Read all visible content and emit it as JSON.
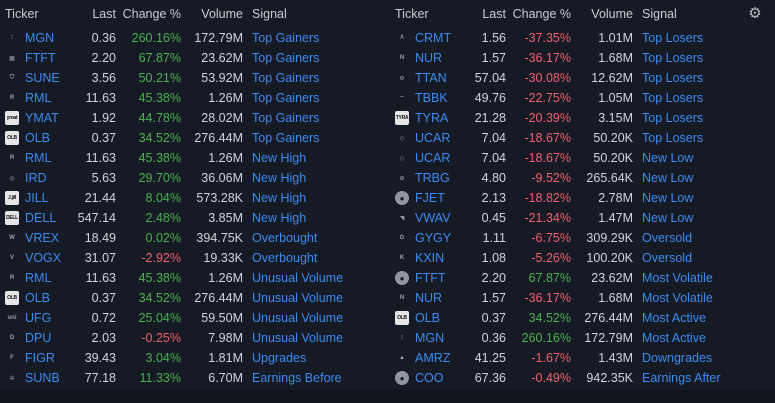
{
  "headers": {
    "ticker": "Ticker",
    "last": "Last",
    "change": "Change %",
    "volume": "Volume",
    "signal": "Signal"
  },
  "left": [
    {
      "logo": "rocket-logo",
      "glyph": "⫶",
      "ticker": "MGN",
      "last": "0.36",
      "change": "260.16%",
      "dir": "pos",
      "volume": "172.79M",
      "signal": "Top Gainers"
    },
    {
      "logo": "ftft-logo",
      "glyph": "▦",
      "ticker": "FTFT",
      "last": "2.20",
      "change": "67.87%",
      "dir": "pos",
      "volume": "23.62M",
      "signal": "Top Gainers"
    },
    {
      "logo": "sune-logo",
      "glyph": "⛉",
      "ticker": "SUNE",
      "last": "3.56",
      "change": "50.21%",
      "dir": "pos",
      "volume": "53.92M",
      "signal": "Top Gainers"
    },
    {
      "logo": "rml-logo",
      "glyph": "R",
      "ticker": "RML",
      "last": "11.63",
      "change": "45.38%",
      "dir": "pos",
      "volume": "1.26M",
      "signal": "Top Gainers"
    },
    {
      "logo": "ymat-logo",
      "glyph": "ymat",
      "ticker": "YMAT",
      "last": "1.92",
      "change": "44.78%",
      "dir": "pos",
      "volume": "28.02M",
      "signal": "Top Gainers"
    },
    {
      "logo": "olb-logo",
      "glyph": "OLB",
      "ticker": "OLB",
      "last": "0.37",
      "change": "34.52%",
      "dir": "pos",
      "volume": "276.44M",
      "signal": "Top Gainers"
    },
    {
      "logo": "rml-logo",
      "glyph": "R",
      "ticker": "RML",
      "last": "11.63",
      "change": "45.38%",
      "dir": "pos",
      "volume": "1.26M",
      "signal": "New High"
    },
    {
      "logo": "ird-logo",
      "glyph": "◎",
      "ticker": "IRD",
      "last": "5.63",
      "change": "29.70%",
      "dir": "pos",
      "volume": "36.06M",
      "signal": "New High"
    },
    {
      "logo": "jill-logo",
      "glyph": "J.jill",
      "ticker": "JILL",
      "last": "21.44",
      "change": "8.04%",
      "dir": "pos",
      "volume": "573.28K",
      "signal": "New High"
    },
    {
      "logo": "dell-logo",
      "glyph": "DELL",
      "ticker": "DELL",
      "last": "547.14",
      "change": "2.48%",
      "dir": "pos",
      "volume": "3.85M",
      "signal": "New High"
    },
    {
      "logo": "vrex-logo",
      "glyph": "W",
      "ticker": "VREX",
      "last": "18.49",
      "change": "0.02%",
      "dir": "pos",
      "volume": "394.75K",
      "signal": "Overbought"
    },
    {
      "logo": "vogx-logo",
      "glyph": "V",
      "ticker": "VOGX",
      "last": "31.07",
      "change": "-2.92%",
      "dir": "neg",
      "volume": "19.33K",
      "signal": "Overbought"
    },
    {
      "logo": "rml-logo",
      "glyph": "R",
      "ticker": "RML",
      "last": "11.63",
      "change": "45.38%",
      "dir": "pos",
      "volume": "1.26M",
      "signal": "Unusual Volume"
    },
    {
      "logo": "olb-logo",
      "glyph": "OLB",
      "ticker": "OLB",
      "last": "0.37",
      "change": "34.52%",
      "dir": "pos",
      "volume": "276.44M",
      "signal": "Unusual Volume"
    },
    {
      "logo": "ufg-logo",
      "glyph": "uni",
      "ticker": "UFG",
      "last": "0.72",
      "change": "25.04%",
      "dir": "pos",
      "volume": "59.50M",
      "signal": "Unusual Volume"
    },
    {
      "logo": "dpu-logo",
      "glyph": "D",
      "ticker": "DPU",
      "last": "2.03",
      "change": "-0.25%",
      "dir": "neg",
      "volume": "7.98M",
      "signal": "Unusual Volume"
    },
    {
      "logo": "figr-logo",
      "glyph": "F",
      "ticker": "FIGR",
      "last": "39.43",
      "change": "3.04%",
      "dir": "pos",
      "volume": "1.81M",
      "signal": "Upgrades"
    },
    {
      "logo": "sunb-logo",
      "glyph": "✲",
      "ticker": "SUNB",
      "last": "77.18",
      "change": "11.33%",
      "dir": "pos",
      "volume": "6.70M",
      "signal": "Earnings Before"
    }
  ],
  "right": [
    {
      "logo": "crmt-logo",
      "glyph": "/\\",
      "ticker": "CRMT",
      "last": "1.56",
      "change": "-37.35%",
      "dir": "neg",
      "volume": "1.01M",
      "signal": "Top Losers"
    },
    {
      "logo": "nur-logo",
      "glyph": "N",
      "ticker": "NUR",
      "last": "1.57",
      "change": "-36.17%",
      "dir": "neg",
      "volume": "1.68M",
      "signal": "Top Losers"
    },
    {
      "logo": "ttan-logo",
      "glyph": "⚙",
      "ticker": "TTAN",
      "last": "57.04",
      "change": "-30.08%",
      "dir": "neg",
      "volume": "12.62M",
      "signal": "Top Losers"
    },
    {
      "logo": "tbbk-logo",
      "glyph": "~",
      "ticker": "TBBK",
      "last": "49.76",
      "change": "-22.75%",
      "dir": "neg",
      "volume": "1.05M",
      "signal": "Top Losers"
    },
    {
      "logo": "tyra-logo",
      "glyph": "TYRA",
      "ticker": "TYRA",
      "last": "21.28",
      "change": "-20.39%",
      "dir": "neg",
      "volume": "3.15M",
      "signal": "Top Losers"
    },
    {
      "logo": "ucar-logo",
      "glyph": "◇",
      "ticker": "UCAR",
      "last": "7.04",
      "change": "-18.67%",
      "dir": "neg",
      "volume": "50.20K",
      "signal": "Top Losers"
    },
    {
      "logo": "ucar-logo",
      "glyph": "◇",
      "ticker": "UCAR",
      "last": "7.04",
      "change": "-18.67%",
      "dir": "neg",
      "volume": "50.20K",
      "signal": "New Low"
    },
    {
      "logo": "trbg-logo",
      "glyph": "⊙",
      "ticker": "TRBG",
      "last": "4.80",
      "change": "-9.52%",
      "dir": "neg",
      "volume": "265.64K",
      "signal": "New Low"
    },
    {
      "logo": "fjet-logo",
      "glyph": "●",
      "ticker": "FJET",
      "last": "2.13",
      "change": "-18.82%",
      "dir": "neg",
      "volume": "2.78M",
      "signal": "New Low"
    },
    {
      "logo": "vwav-logo",
      "glyph": "◥",
      "ticker": "VWAV",
      "last": "0.45",
      "change": "-21.34%",
      "dir": "neg",
      "volume": "1.47M",
      "signal": "New Low"
    },
    {
      "logo": "gygy-logo",
      "glyph": "G",
      "ticker": "GYGY",
      "last": "1.11",
      "change": "-6.75%",
      "dir": "neg",
      "volume": "309.29K",
      "signal": "Oversold"
    },
    {
      "logo": "kxin-logo",
      "glyph": "K",
      "ticker": "KXIN",
      "last": "1.08",
      "change": "-5.26%",
      "dir": "neg",
      "volume": "100.20K",
      "signal": "Oversold"
    },
    {
      "logo": "ftft-logo",
      "glyph": "●",
      "ticker": "FTFT",
      "last": "2.20",
      "change": "67.87%",
      "dir": "pos",
      "volume": "23.62M",
      "signal": "Most Volatile"
    },
    {
      "logo": "nur-logo",
      "glyph": "N",
      "ticker": "NUR",
      "last": "1.57",
      "change": "-36.17%",
      "dir": "neg",
      "volume": "1.68M",
      "signal": "Most Volatile"
    },
    {
      "logo": "olb-logo",
      "glyph": "OLB",
      "ticker": "OLB",
      "last": "0.37",
      "change": "34.52%",
      "dir": "pos",
      "volume": "276.44M",
      "signal": "Most Active"
    },
    {
      "logo": "mgn-logo",
      "glyph": "⫶",
      "ticker": "MGN",
      "last": "0.36",
      "change": "260.16%",
      "dir": "pos",
      "volume": "172.79M",
      "signal": "Most Active"
    },
    {
      "logo": "amrz-logo",
      "glyph": "▲",
      "ticker": "AMRZ",
      "last": "41.25",
      "change": "-1.67%",
      "dir": "neg",
      "volume": "1.43M",
      "signal": "Downgrades"
    },
    {
      "logo": "coo-logo",
      "glyph": "●",
      "ticker": "COO",
      "last": "67.36",
      "change": "-0.49%",
      "dir": "neg",
      "volume": "942.35K",
      "signal": "Earnings After"
    }
  ],
  "settings_icon": "gear-icon"
}
